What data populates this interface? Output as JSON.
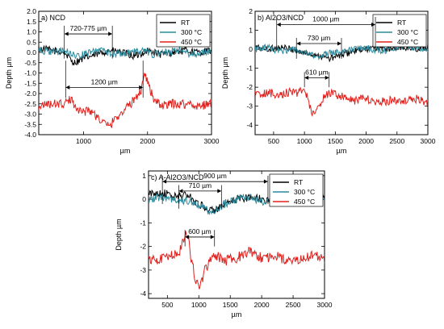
{
  "chart_data": [
    {
      "panel": "a) NCD",
      "type": "line",
      "xlabel": "µm",
      "ylabel": "Depth µm",
      "xlim": [
        300,
        3000
      ],
      "ylim": [
        -4.0,
        2.0
      ],
      "xticks": [
        1000,
        2000,
        3000
      ],
      "yticks": [
        2.0,
        1.5,
        1.0,
        0.5,
        0.0,
        -0.5,
        -1.0,
        -1.5,
        -2.0,
        -2.5,
        -3.0,
        -3.5,
        -4.0
      ],
      "ytick_labels": [
        "2.0",
        "1.5",
        "1.0",
        "0.5",
        "0.0",
        "-0.5",
        "-1.0",
        "-1.5",
        "-2.0",
        "-2.5",
        "-3.0",
        "-3.5",
        "-4.0"
      ],
      "legend_position": "top-right",
      "series": [
        {
          "name": "RT",
          "color": "#000000",
          "x": [
            300,
            500,
            700,
            850,
            1000,
            1200,
            1400,
            1600,
            1800,
            2000,
            2200,
            2400,
            2600,
            2800,
            3000
          ],
          "y": [
            0.2,
            0.1,
            0.0,
            -0.5,
            -0.3,
            -0.1,
            0.1,
            0.0,
            -0.2,
            0.1,
            -0.1,
            0.0,
            0.1,
            0.0,
            0.1
          ]
        },
        {
          "name": "300 °C",
          "color": "#2a8a9e",
          "x": [
            300,
            500,
            700,
            900,
            1100,
            1300,
            1500,
            1700,
            1900,
            2100,
            2300,
            2500,
            2700,
            2900,
            3000
          ],
          "y": [
            0.1,
            0.0,
            0.1,
            -0.2,
            0.0,
            0.1,
            -0.1,
            0.0,
            0.1,
            -0.1,
            0.0,
            0.1,
            -0.1,
            0.0,
            0.1
          ]
        },
        {
          "name": "450 °C",
          "color": "#e0201c",
          "x": [
            300,
            500,
            700,
            800,
            900,
            1000,
            1100,
            1200,
            1300,
            1400,
            1500,
            1600,
            1700,
            1800,
            1900,
            1950,
            2000,
            2100,
            2200,
            2400,
            2600,
            2800,
            3000
          ],
          "y": [
            -2.6,
            -2.5,
            -2.5,
            -2.3,
            -2.7,
            -2.9,
            -2.8,
            -3.1,
            -3.4,
            -3.6,
            -3.2,
            -2.9,
            -2.6,
            -2.3,
            -1.8,
            -1.0,
            -1.4,
            -2.3,
            -2.6,
            -2.5,
            -2.5,
            -2.6,
            -2.5
          ]
        }
      ],
      "annotations": [
        {
          "label": "720-775 µm",
          "x1": 700,
          "x2": 1450,
          "y": 0.9,
          "top": 1.3,
          "bottom": -0.3
        },
        {
          "label": "1200 µm",
          "x1": 720,
          "x2": 1930,
          "y": -1.7,
          "top": -0.4,
          "bottom": -2.2
        }
      ]
    },
    {
      "panel": "b) Al2O3/NCD",
      "type": "line",
      "xlabel": "µm",
      "ylabel": "Depth µm",
      "xlim": [
        200,
        3000
      ],
      "ylim": [
        -4.5,
        2.0
      ],
      "xticks": [
        500,
        1000,
        1500,
        2000,
        2500,
        3000
      ],
      "yticks": [
        2,
        1,
        0,
        -1,
        -2,
        -3,
        -4
      ],
      "ytick_labels": [
        "2",
        "1",
        "0",
        "-1",
        "-2",
        "-3",
        "-4"
      ],
      "legend_position": "top-right",
      "series": [
        {
          "name": "RT",
          "color": "#000000",
          "x": [
            200,
            400,
            600,
            800,
            1000,
            1200,
            1400,
            1600,
            1800,
            2000,
            2200,
            2400,
            2600,
            2800,
            3000
          ],
          "y": [
            0.1,
            0.0,
            0.1,
            0.0,
            -0.2,
            -0.3,
            -0.5,
            -0.3,
            -0.1,
            0.0,
            0.1,
            0.0,
            0.1,
            0.0,
            0.1
          ]
        },
        {
          "name": "300 °C",
          "color": "#2a8a9e",
          "x": [
            200,
            400,
            600,
            800,
            1000,
            1200,
            1400,
            1600,
            1800,
            2000,
            2200,
            2400,
            2600,
            2800,
            3000
          ],
          "y": [
            0.0,
            0.1,
            -0.1,
            0.0,
            -0.2,
            -0.4,
            -0.2,
            -0.1,
            0.0,
            0.1,
            -0.1,
            0.0,
            0.2,
            0.1,
            0.0
          ]
        },
        {
          "name": "450 °C",
          "color": "#e0201c",
          "x": [
            200,
            400,
            600,
            800,
            900,
            1000,
            1050,
            1100,
            1150,
            1200,
            1300,
            1400,
            1600,
            1800,
            2000,
            2200,
            2400,
            2600,
            2800,
            3000
          ],
          "y": [
            -2.4,
            -2.3,
            -2.4,
            -2.2,
            -2.3,
            -2.0,
            -2.6,
            -3.2,
            -3.5,
            -3.2,
            -2.6,
            -2.3,
            -2.5,
            -2.7,
            -2.6,
            -2.8,
            -2.7,
            -2.7,
            -2.6,
            -2.8
          ]
        }
      ],
      "annotations": [
        {
          "label": "1000 µm",
          "x1": 550,
          "x2": 2150,
          "y": 1.3,
          "top": 1.7,
          "bottom": -0.1
        },
        {
          "label": "730 µm",
          "x1": 870,
          "x2": 1600,
          "y": 0.3,
          "top": 0.6,
          "bottom": -0.5
        },
        {
          "label": "610 µm",
          "x1": 1000,
          "x2": 1400,
          "y": -1.5,
          "top": -1.2,
          "bottom": -2.0
        }
      ]
    },
    {
      "panel": "c) A-Al2O3/NCD",
      "type": "line",
      "xlabel": "µm",
      "ylabel": "Depth µm",
      "xlim": [
        200,
        3000
      ],
      "ylim": [
        -4.2,
        1.2
      ],
      "xticks": [
        500,
        1000,
        1500,
        2000,
        2500,
        3000
      ],
      "yticks": [
        1,
        0,
        -1,
        -2,
        -3,
        -4
      ],
      "ytick_labels": [
        "1",
        "0",
        "-1",
        "-2",
        "-3",
        "-4"
      ],
      "legend_position": "top-right",
      "series": [
        {
          "name": "RT",
          "color": "#000000",
          "x": [
            200,
            400,
            600,
            800,
            1000,
            1200,
            1400,
            1600,
            1800,
            2000,
            2200,
            2400,
            2600,
            2800,
            3000
          ],
          "y": [
            0.2,
            0.3,
            0.1,
            0.2,
            -0.2,
            -0.5,
            -0.3,
            0.0,
            0.1,
            0.0,
            -0.1,
            0.0,
            0.1,
            0.0,
            0.1
          ]
        },
        {
          "name": "300 °C",
          "color": "#2a8a9e",
          "x": [
            200,
            400,
            600,
            800,
            1000,
            1200,
            1400,
            1600,
            1800,
            2000,
            2200,
            2400,
            2600,
            2800,
            3000
          ],
          "y": [
            0.0,
            0.1,
            0.0,
            -0.1,
            -0.2,
            -0.6,
            -0.2,
            0.0,
            0.1,
            -0.1,
            0.0,
            0.2,
            0.1,
            0.0,
            -0.1
          ]
        },
        {
          "name": "450 °C",
          "color": "#e0201c",
          "x": [
            200,
            400,
            600,
            700,
            800,
            850,
            900,
            950,
            1000,
            1050,
            1100,
            1200,
            1300,
            1400,
            1600,
            1800,
            2000,
            2200,
            2400,
            2600,
            2800,
            3000
          ],
          "y": [
            -2.6,
            -2.5,
            -2.4,
            -2.2,
            -1.4,
            -2.0,
            -2.8,
            -3.4,
            -3.7,
            -3.4,
            -3.0,
            -2.5,
            -2.4,
            -2.6,
            -2.5,
            -2.2,
            -2.5,
            -2.4,
            -2.6,
            -2.5,
            -2.4,
            -2.5
          ]
        }
      ],
      "annotations": [
        {
          "label": "900 µm",
          "x1": 420,
          "x2": 2100,
          "y": 0.75,
          "top": 1.0,
          "bottom": -0.2
        },
        {
          "label": "710 µm",
          "x1": 680,
          "x2": 1360,
          "y": 0.35,
          "top": 0.6,
          "bottom": -0.4
        },
        {
          "label": "600 µm",
          "x1": 780,
          "x2": 1250,
          "y": -1.6,
          "top": -1.3,
          "bottom": -2.0
        }
      ]
    }
  ]
}
